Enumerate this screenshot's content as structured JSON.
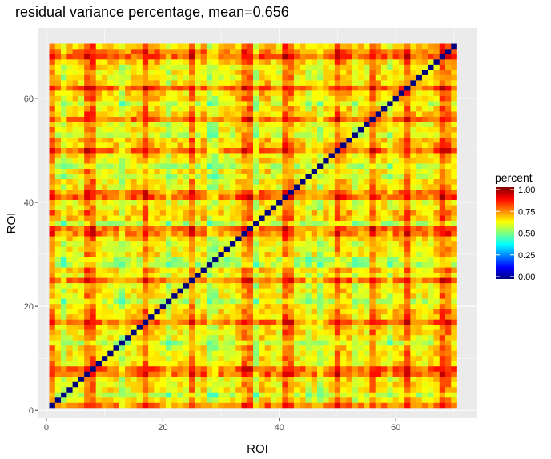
{
  "chart_data": {
    "type": "heatmap",
    "title": "residual variance percentage, mean=0.656",
    "xlabel": "ROI",
    "ylabel": "ROI",
    "n": 70,
    "xlim": [
      -1.5,
      74
    ],
    "ylim": [
      -1.5,
      73.5
    ],
    "x_ticks": [
      0,
      20,
      40,
      60
    ],
    "y_ticks": [
      0,
      20,
      40,
      60
    ],
    "x_tick_labels": [
      "0",
      "20",
      "40",
      "60"
    ],
    "y_tick_labels": [
      "0",
      "20",
      "40",
      "60"
    ],
    "grid": true,
    "mean": 0.656,
    "diagonal_value": 0.0,
    "high_rois": [
      1,
      7,
      8,
      17,
      25,
      34,
      35,
      41,
      42,
      50,
      56,
      62,
      68,
      69
    ],
    "low_rois": [
      3,
      13,
      21,
      28,
      29,
      36,
      45,
      47,
      53,
      59
    ],
    "legend": {
      "title": "percent",
      "position": "right",
      "range": [
        0,
        1
      ],
      "ticks": [
        0.0,
        0.25,
        0.5,
        0.75,
        1.0
      ],
      "tick_labels": [
        "0.00",
        "0.25",
        "0.50",
        "0.75",
        "1.00"
      ]
    },
    "colorscale": [
      "#00007F",
      "#0000FF",
      "#007FFF",
      "#00FFFF",
      "#7FFF7F",
      "#FFFF00",
      "#FF7F00",
      "#FF0000",
      "#7F0000"
    ]
  }
}
